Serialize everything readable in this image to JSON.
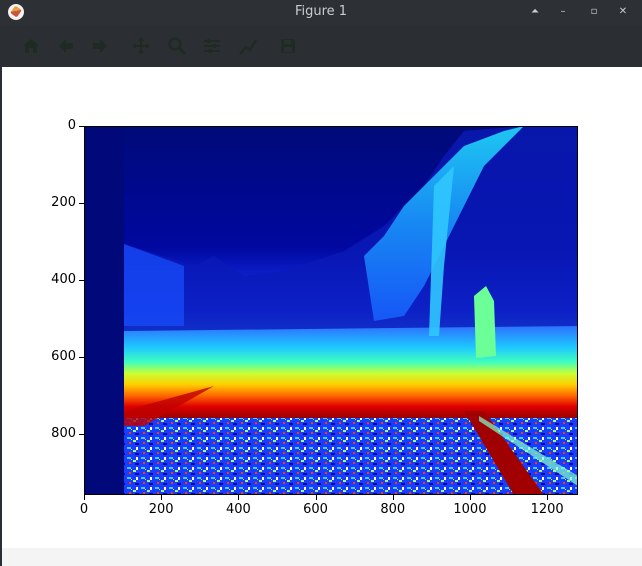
{
  "window": {
    "title": "Figure 1",
    "controls": {
      "keep_above": "⏶",
      "minimize": "–",
      "restore": "▫",
      "close": "✕"
    }
  },
  "toolbar": {
    "icons": [
      "home-icon",
      "back-arrow-icon",
      "forward-arrow-icon",
      "pan-icon",
      "zoom-icon",
      "configure-subplots-icon",
      "edit-axis-icon",
      "save-icon"
    ]
  },
  "chart_data": {
    "type": "heatmap",
    "colormap": "jet",
    "title": "",
    "xlabel": "",
    "ylabel": "",
    "xlim": [
      0,
      1280
    ],
    "ylim": [
      960,
      0
    ],
    "x_ticks": [
      "0",
      "200",
      "400",
      "600",
      "800",
      "1000",
      "1200"
    ],
    "y_ticks": [
      "0",
      "200",
      "400",
      "600",
      "800"
    ],
    "x_tick_values": [
      0,
      200,
      400,
      600,
      800,
      1000,
      1200
    ],
    "y_tick_values": [
      0,
      200,
      400,
      600,
      800
    ],
    "grid": false,
    "legend": "none"
  },
  "colors": {
    "titlebar": "#2d3135",
    "toolbar": "#2b2f33",
    "toolbar_icon": "#1e2a22",
    "figure_bg": "#ffffff"
  }
}
